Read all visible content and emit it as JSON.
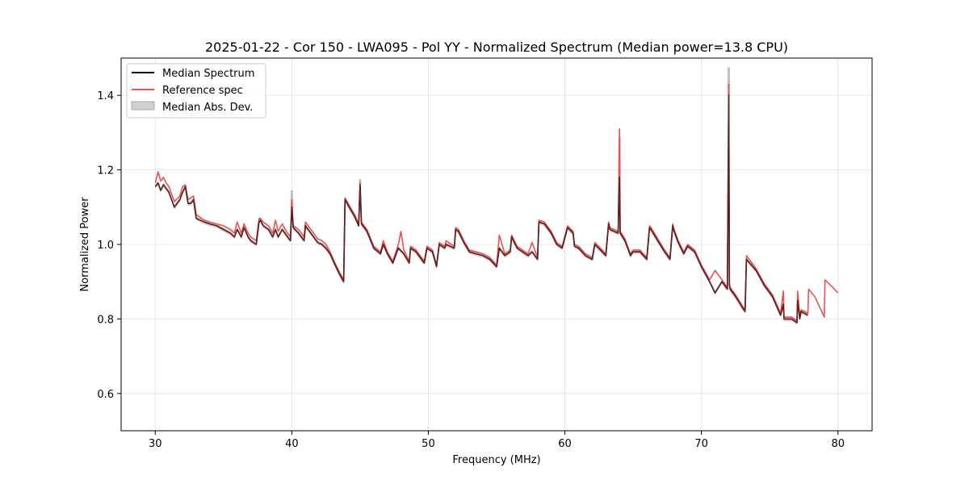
{
  "chart_data": {
    "type": "line",
    "title": "2025-01-22 - Cor 150 - LWA095 - Pol YY - Normalized Spectrum (Median power=13.8 CPU)",
    "xlabel": "Frequency (MHz)",
    "ylabel": "Normalized Power",
    "xlim": [
      27.5,
      82.5
    ],
    "ylim": [
      0.5,
      1.5
    ],
    "xticks": [
      30,
      40,
      50,
      60,
      70,
      80
    ],
    "yticks": [
      0.6,
      0.8,
      1.0,
      1.2,
      1.4
    ],
    "xtick_labels": [
      "30",
      "40",
      "50",
      "60",
      "70",
      "80"
    ],
    "ytick_labels": [
      "0.6",
      "0.8",
      "1.0",
      "1.2",
      "1.4"
    ],
    "grid": true,
    "legend_position": "top-left",
    "legend": {
      "median": "Median Spectrum",
      "reference": "Reference spec",
      "mad": "Median Abs. Dev."
    },
    "colors": {
      "median": "#000000",
      "reference": "#f05050",
      "mad": "#b0b0b0"
    },
    "series": [
      {
        "name": "Median Spectrum",
        "x": [
          30.0,
          30.2,
          30.4,
          30.6,
          30.8,
          31.0,
          31.4,
          31.8,
          32.0,
          32.2,
          32.4,
          32.6,
          32.8,
          33.0,
          33.6,
          34.0,
          34.5,
          35.0,
          35.5,
          35.8,
          36.0,
          36.3,
          36.5,
          36.8,
          37.0,
          37.4,
          37.6,
          37.7,
          37.9,
          38.3,
          38.6,
          38.8,
          39.0,
          39.3,
          39.6,
          39.9,
          40.0,
          40.1,
          40.5,
          40.9,
          41.0,
          41.5,
          41.9,
          42.2,
          42.5,
          42.8,
          43.1,
          43.5,
          43.8,
          43.9,
          44.2,
          44.6,
          44.9,
          45.0,
          45.1,
          45.5,
          46.0,
          46.5,
          46.7,
          47.0,
          47.4,
          47.8,
          48.2,
          48.6,
          48.7,
          49.1,
          49.3,
          49.7,
          49.9,
          50.3,
          50.6,
          50.8,
          51.2,
          51.3,
          51.9,
          52.0,
          52.2,
          52.6,
          53.0,
          53.5,
          54.0,
          54.5,
          55.0,
          55.2,
          55.6,
          56.0,
          56.1,
          56.5,
          56.9,
          57.3,
          57.6,
          58.0,
          58.1,
          58.5,
          59.0,
          59.4,
          59.8,
          60.2,
          60.6,
          60.7,
          61.0,
          61.5,
          62.0,
          62.2,
          62.6,
          63.0,
          63.2,
          63.3,
          63.9,
          64.0,
          64.05,
          64.4,
          64.8,
          65.0,
          65.5,
          66.0,
          66.2,
          66.3,
          66.8,
          67.3,
          67.7,
          67.9,
          68.0,
          68.3,
          68.7,
          69.0,
          69.5,
          70.0,
          70.6,
          71.0,
          71.5,
          71.9,
          72.0,
          72.05,
          72.1,
          72.5,
          73.0,
          73.2,
          73.3,
          74.0,
          74.6,
          75.2,
          75.8,
          76.0,
          76.05,
          76.6,
          77.0,
          77.05,
          77.2,
          77.3,
          77.8
        ],
        "y": [
          1.155,
          1.165,
          1.145,
          1.16,
          1.15,
          1.14,
          1.1,
          1.12,
          1.14,
          1.155,
          1.11,
          1.11,
          1.12,
          1.07,
          1.06,
          1.055,
          1.05,
          1.04,
          1.03,
          1.02,
          1.04,
          1.02,
          1.045,
          1.02,
          1.01,
          1.0,
          1.06,
          1.065,
          1.05,
          1.04,
          1.02,
          1.04,
          1.02,
          1.04,
          1.025,
          1.01,
          1.1,
          1.045,
          1.03,
          1.01,
          1.05,
          1.025,
          1.005,
          1.0,
          0.99,
          0.975,
          0.95,
          0.92,
          0.9,
          1.12,
          1.1,
          1.075,
          1.05,
          1.16,
          1.055,
          1.035,
          0.99,
          0.975,
          1.0,
          0.975,
          0.95,
          0.99,
          0.975,
          0.95,
          0.99,
          0.98,
          0.97,
          0.95,
          0.99,
          0.98,
          0.94,
          1.0,
          0.99,
          1.0,
          0.99,
          1.04,
          1.035,
          1.005,
          0.98,
          0.975,
          0.97,
          0.96,
          0.94,
          0.99,
          0.97,
          0.98,
          1.02,
          0.99,
          0.98,
          0.97,
          0.98,
          0.96,
          1.06,
          1.055,
          1.03,
          1.0,
          0.99,
          1.045,
          1.03,
          0.995,
          0.99,
          0.97,
          0.96,
          1.0,
          0.985,
          0.97,
          1.055,
          1.04,
          1.03,
          1.18,
          1.03,
          1.01,
          0.97,
          0.98,
          0.98,
          0.96,
          1.045,
          1.04,
          1.01,
          0.98,
          0.96,
          1.05,
          1.035,
          1.005,
          0.975,
          0.995,
          0.98,
          0.94,
          0.9,
          0.87,
          0.9,
          0.88,
          1.4,
          0.89,
          0.88,
          0.86,
          0.83,
          0.82,
          0.96,
          0.93,
          0.89,
          0.86,
          0.81,
          0.84,
          0.8,
          0.8,
          0.79,
          0.85,
          0.8,
          0.82,
          0.81
        ]
      },
      {
        "name": "Reference spec",
        "x": [
          30.0,
          30.2,
          30.4,
          30.6,
          30.8,
          31.0,
          31.4,
          31.8,
          32.0,
          32.2,
          32.4,
          32.6,
          32.8,
          33.0,
          33.6,
          34.0,
          34.5,
          35.0,
          35.5,
          35.8,
          36.0,
          36.3,
          36.5,
          36.8,
          37.0,
          37.4,
          37.6,
          37.7,
          37.9,
          38.3,
          38.6,
          38.8,
          39.0,
          39.3,
          39.6,
          39.9,
          40.0,
          40.1,
          40.5,
          40.9,
          41.0,
          41.5,
          41.9,
          42.2,
          42.5,
          42.8,
          43.1,
          43.5,
          43.8,
          43.9,
          44.2,
          44.6,
          44.9,
          45.0,
          45.1,
          45.5,
          46.0,
          46.5,
          46.7,
          47.0,
          47.4,
          47.8,
          48.0,
          48.2,
          48.6,
          48.7,
          49.1,
          49.3,
          49.7,
          49.9,
          50.3,
          50.6,
          50.8,
          51.2,
          51.3,
          51.9,
          52.0,
          52.2,
          52.6,
          53.0,
          53.5,
          54.0,
          54.5,
          55.0,
          55.2,
          55.6,
          56.0,
          56.1,
          56.5,
          56.9,
          57.3,
          57.6,
          58.0,
          58.1,
          58.5,
          59.0,
          59.4,
          59.8,
          60.2,
          60.6,
          60.7,
          61.0,
          61.5,
          62.0,
          62.2,
          62.6,
          63.0,
          63.2,
          63.3,
          63.9,
          64.0,
          64.05,
          64.4,
          64.8,
          65.0,
          65.5,
          66.0,
          66.2,
          66.3,
          66.8,
          67.3,
          67.7,
          67.9,
          68.0,
          68.3,
          68.7,
          69.0,
          69.5,
          70.0,
          70.6,
          71.0,
          71.5,
          71.9,
          72.0,
          72.05,
          72.1,
          72.5,
          73.0,
          73.2,
          73.3,
          74.0,
          74.6,
          75.2,
          75.8,
          76.0,
          76.05,
          76.6,
          77.0,
          77.05,
          77.2,
          77.3,
          77.8,
          77.85,
          78.3,
          79.0,
          79.05,
          79.6,
          80.0
        ],
        "y": [
          1.165,
          1.195,
          1.17,
          1.18,
          1.165,
          1.155,
          1.115,
          1.13,
          1.155,
          1.16,
          1.12,
          1.125,
          1.13,
          1.08,
          1.065,
          1.06,
          1.055,
          1.05,
          1.04,
          1.03,
          1.06,
          1.03,
          1.055,
          1.03,
          1.02,
          1.01,
          1.07,
          1.07,
          1.06,
          1.05,
          1.03,
          1.065,
          1.035,
          1.055,
          1.035,
          1.02,
          1.12,
          1.05,
          1.04,
          1.02,
          1.06,
          1.035,
          1.015,
          1.01,
          1.0,
          0.98,
          0.955,
          0.925,
          0.905,
          1.125,
          1.105,
          1.08,
          1.055,
          1.165,
          1.06,
          1.04,
          0.995,
          0.98,
          1.01,
          0.98,
          0.955,
          1.0,
          1.035,
          0.985,
          0.955,
          0.995,
          0.985,
          0.975,
          0.955,
          0.995,
          0.985,
          0.945,
          1.005,
          0.995,
          1.01,
          0.995,
          1.045,
          1.04,
          1.01,
          0.985,
          0.98,
          0.975,
          0.965,
          0.945,
          1.025,
          0.975,
          0.985,
          1.025,
          0.995,
          0.985,
          0.975,
          1.005,
          0.965,
          1.065,
          1.06,
          1.035,
          1.005,
          0.995,
          1.05,
          1.035,
          1.0,
          0.995,
          0.975,
          0.965,
          1.005,
          0.99,
          0.975,
          1.06,
          1.045,
          1.035,
          1.31,
          1.035,
          1.015,
          0.975,
          0.985,
          0.985,
          0.965,
          1.05,
          1.045,
          1.015,
          0.985,
          0.965,
          1.055,
          1.04,
          1.01,
          0.98,
          1.0,
          0.985,
          0.945,
          0.905,
          0.93,
          0.905,
          0.885,
          1.43,
          0.895,
          0.885,
          0.865,
          0.835,
          0.825,
          0.97,
          0.935,
          0.895,
          0.865,
          0.815,
          0.875,
          0.805,
          0.805,
          0.795,
          0.875,
          0.805,
          0.825,
          0.815,
          0.88,
          0.86,
          0.805,
          0.905,
          0.885,
          0.87
        ]
      }
    ],
    "mad_band": {
      "name": "Median Abs. Dev.",
      "width": 0.006,
      "spikes": [
        {
          "x": 40.0,
          "y": 1.145
        },
        {
          "x": 45.0,
          "y": 1.175
        },
        {
          "x": 64.0,
          "y": 1.29
        },
        {
          "x": 72.0,
          "y": 1.475
        }
      ]
    }
  }
}
